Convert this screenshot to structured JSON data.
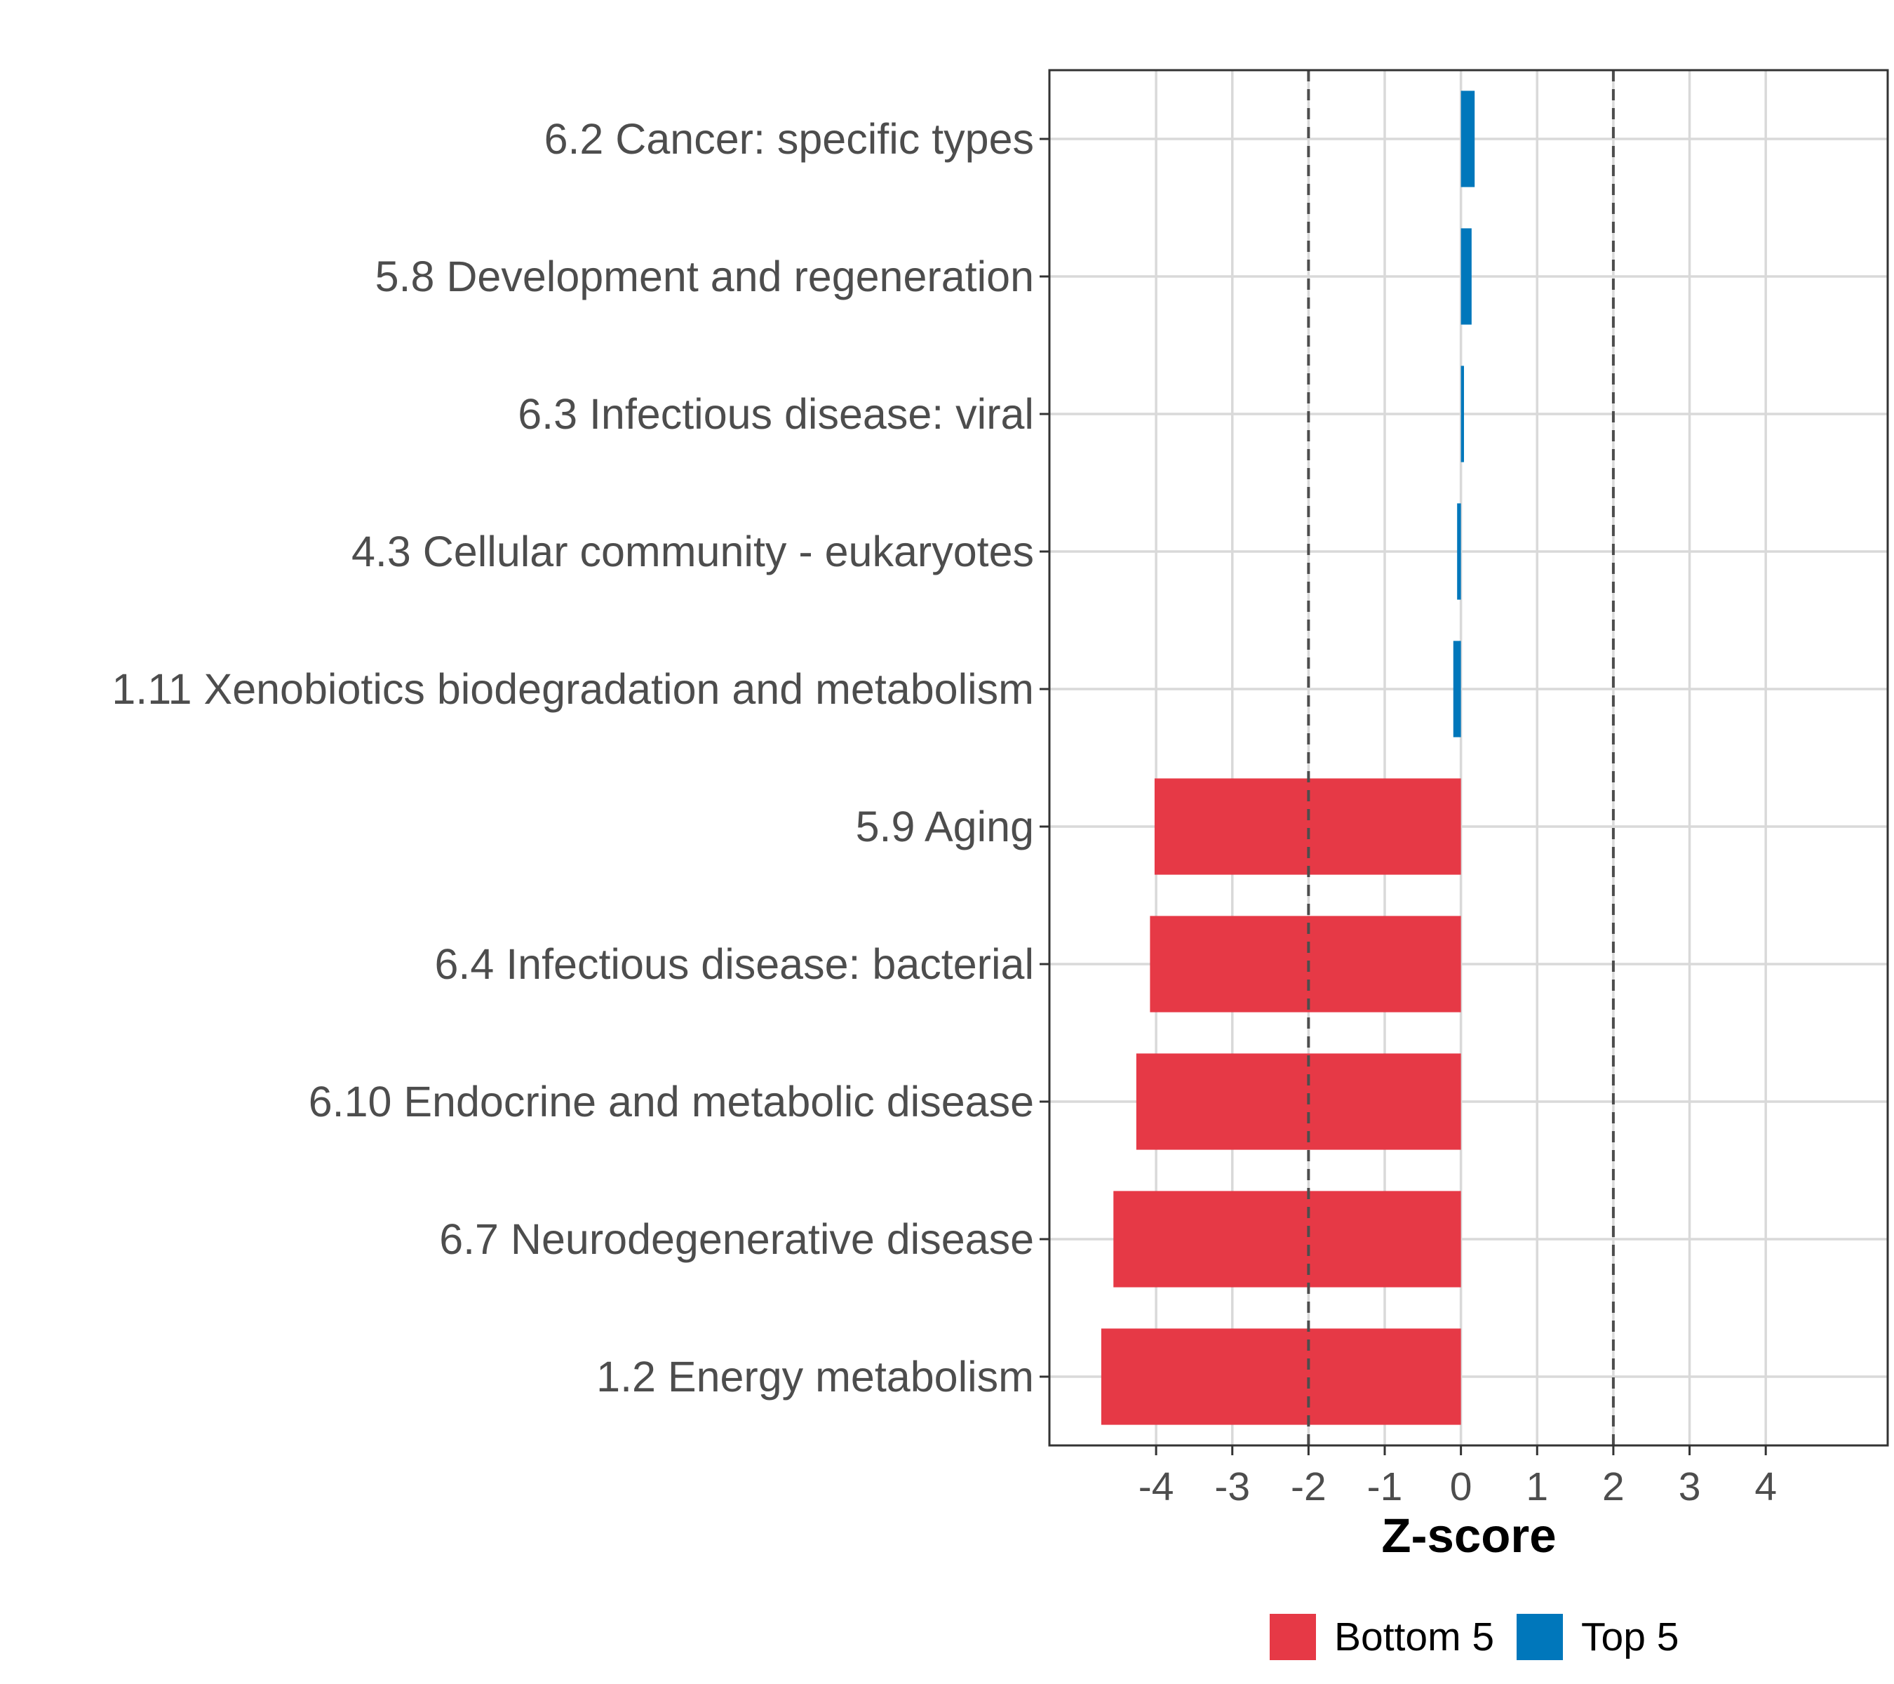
{
  "chart_data": {
    "type": "bar",
    "orientation": "horizontal",
    "title": "",
    "xlabel": "Z-score",
    "ylabel": "",
    "xlim": [
      -5.4,
      5.6
    ],
    "x_ticks": [
      -4,
      -3,
      -2,
      -1,
      0,
      1,
      2,
      3,
      4
    ],
    "x_tick_labels": [
      "-4",
      "-3",
      "-2",
      "-1",
      "0",
      "1",
      "2",
      "3",
      "4"
    ],
    "reference_lines": [
      -2,
      2
    ],
    "grid": true,
    "legend_position": "bottom",
    "categories": [
      "6.2 Cancer: specific types",
      "5.8 Development and regeneration",
      "6.3 Infectious disease: viral",
      "4.3 Cellular community - eukaryotes",
      "1.11 Xenobiotics biodegradation and metabolism",
      "5.9 Aging",
      "6.4 Infectious disease: bacterial",
      "6.10 Endocrine and metabolic disease",
      "6.7 Neurodegenerative disease",
      "1.2 Energy metabolism"
    ],
    "values": [
      0.18,
      0.14,
      0.04,
      -0.05,
      -0.1,
      -4.02,
      -4.08,
      -4.26,
      -4.56,
      -4.72
    ],
    "groups": [
      "Top 5",
      "Top 5",
      "Top 5",
      "Top 5",
      "Top 5",
      "Bottom 5",
      "Bottom 5",
      "Bottom 5",
      "Bottom 5",
      "Bottom 5"
    ],
    "series": [
      {
        "name": "Bottom 5",
        "color": "#e63946"
      },
      {
        "name": "Top 5",
        "color": "#0077bb"
      }
    ]
  }
}
